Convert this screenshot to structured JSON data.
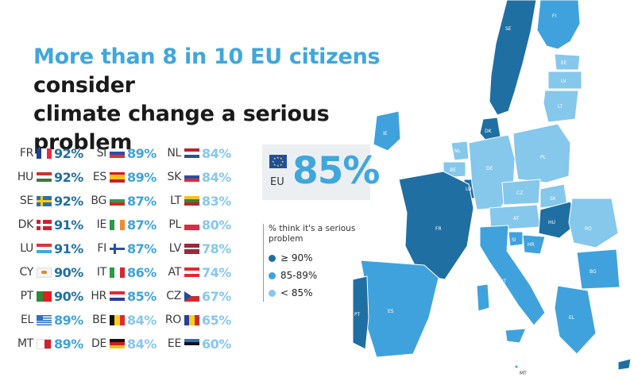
{
  "title": {
    "highlight": "More than 8 in 10 EU citizens",
    "rest_line1": " consider",
    "line2": "climate change a serious problem"
  },
  "colors": {
    "high": "#1f6fa3",
    "mid": "#3fa2dc",
    "low": "#86c7ec"
  },
  "columns": [
    [
      {
        "code": "FR",
        "flag": "fr-flag-icon",
        "value": "92%",
        "tier": "high"
      },
      {
        "code": "HU",
        "flag": "hu-flag-icon",
        "value": "92%",
        "tier": "high"
      },
      {
        "code": "SE",
        "flag": "se-flag-icon",
        "value": "92%",
        "tier": "high"
      },
      {
        "code": "DK",
        "flag": "dk-flag-icon",
        "value": "91%",
        "tier": "high"
      },
      {
        "code": "LU",
        "flag": "lu-flag-icon",
        "value": "91%",
        "tier": "high"
      },
      {
        "code": "CY",
        "flag": "cy-flag-icon",
        "value": "90%",
        "tier": "high"
      },
      {
        "code": "PT",
        "flag": "pt-flag-icon",
        "value": "90%",
        "tier": "high"
      },
      {
        "code": "EL",
        "flag": "el-flag-icon",
        "value": "89%",
        "tier": "mid"
      },
      {
        "code": "MT",
        "flag": "mt-flag-icon",
        "value": "89%",
        "tier": "mid"
      }
    ],
    [
      {
        "code": "SI",
        "flag": "si-flag-icon",
        "value": "89%",
        "tier": "mid"
      },
      {
        "code": "ES",
        "flag": "es-flag-icon",
        "value": "89%",
        "tier": "mid"
      },
      {
        "code": "BG",
        "flag": "bg-flag-icon",
        "value": "87%",
        "tier": "mid"
      },
      {
        "code": "IE",
        "flag": "ie-flag-icon",
        "value": "87%",
        "tier": "mid"
      },
      {
        "code": "FI",
        "flag": "fi-flag-icon",
        "value": "87%",
        "tier": "mid"
      },
      {
        "code": "IT",
        "flag": "it-flag-icon",
        "value": "86%",
        "tier": "mid"
      },
      {
        "code": "HR",
        "flag": "hr-flag-icon",
        "value": "85%",
        "tier": "mid"
      },
      {
        "code": "BE",
        "flag": "be-flag-icon",
        "value": "84%",
        "tier": "low"
      },
      {
        "code": "DE",
        "flag": "de-flag-icon",
        "value": "84%",
        "tier": "low"
      }
    ],
    [
      {
        "code": "NL",
        "flag": "nl-flag-icon",
        "value": "84%",
        "tier": "low"
      },
      {
        "code": "SK",
        "flag": "sk-flag-icon",
        "value": "84%",
        "tier": "low"
      },
      {
        "code": "LT",
        "flag": "lt-flag-icon",
        "value": "83%",
        "tier": "low"
      },
      {
        "code": "PL",
        "flag": "pl-flag-icon",
        "value": "80%",
        "tier": "low"
      },
      {
        "code": "LV",
        "flag": "lv-flag-icon",
        "value": "78%",
        "tier": "low"
      },
      {
        "code": "AT",
        "flag": "at-flag-icon",
        "value": "74%",
        "tier": "low"
      },
      {
        "code": "CZ",
        "flag": "cz-flag-icon",
        "value": "67%",
        "tier": "low"
      },
      {
        "code": "RO",
        "flag": "ro-flag-icon",
        "value": "65%",
        "tier": "low"
      },
      {
        "code": "EE",
        "flag": "ee-flag-icon",
        "value": "60%",
        "tier": "low"
      }
    ]
  ],
  "eu": {
    "code": "EU",
    "value": "85%",
    "flag": "eu-flag-icon"
  },
  "legend": {
    "title": "% think it's a serious problem",
    "items": [
      {
        "label": "≥ 90%",
        "tier": "high"
      },
      {
        "label": "85-89%",
        "tier": "mid"
      },
      {
        "label": "< 85%",
        "tier": "low"
      }
    ]
  },
  "map_labels": {
    "SE": "SE",
    "FI": "FI",
    "EE": "EE",
    "LV": "LV",
    "LT": "LT",
    "IE": "IE",
    "DK": "DK",
    "NL": "NL",
    "BE": "BE",
    "LU": "LU",
    "DE": "DE",
    "PL": "PL",
    "CZ": "CZ",
    "SK": "SK",
    "AT": "AT",
    "HU": "HU",
    "SI": "SI",
    "HR": "HR",
    "RO": "RO",
    "BG": "BG",
    "FR": "FR",
    "ES": "ES",
    "PT": "PT",
    "IT": "IT",
    "EL": "EL",
    "MT": "MT",
    "CY": "CY"
  }
}
